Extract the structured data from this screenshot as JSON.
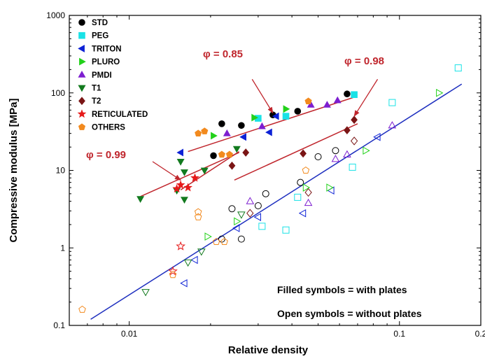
{
  "chart_data": {
    "type": "scatter",
    "title": "",
    "xlabel": "Relative density",
    "ylabel": "Compressive modulus [MPa]",
    "xscale": "log",
    "yscale": "log",
    "xlim": [
      0.006,
      0.2
    ],
    "ylim": [
      0.1,
      1000
    ],
    "x_ticks": [
      0.01,
      0.1,
      0.2
    ],
    "x_tick_labels": [
      "0.01",
      "0.1",
      "0.2"
    ],
    "y_ticks": [
      0.1,
      1,
      10,
      100,
      1000
    ],
    "y_tick_labels": [
      "0.1",
      "1",
      "10",
      "100",
      "1000"
    ],
    "legend_position": "top-left",
    "series": [
      {
        "name": "STD",
        "color": "#000000",
        "marker": "circle",
        "filled": [
          [
            0.0205,
            15.5
          ],
          [
            0.022,
            40
          ],
          [
            0.026,
            38
          ],
          [
            0.034,
            52
          ],
          [
            0.042,
            58
          ],
          [
            0.064,
            97
          ]
        ],
        "open": [
          [
            0.022,
            1.3
          ],
          [
            0.024,
            3.2
          ],
          [
            0.026,
            1.3
          ],
          [
            0.03,
            3.5
          ],
          [
            0.032,
            5
          ],
          [
            0.043,
            7
          ],
          [
            0.05,
            15
          ],
          [
            0.058,
            18
          ]
        ]
      },
      {
        "name": "PEG",
        "color": "#19e2e6",
        "marker": "square",
        "filled": [
          [
            0.03,
            47
          ],
          [
            0.038,
            50
          ],
          [
            0.068,
            95
          ]
        ],
        "open": [
          [
            0.031,
            1.9
          ],
          [
            0.038,
            1.7
          ],
          [
            0.042,
            4.5
          ],
          [
            0.067,
            11
          ],
          [
            0.094,
            75
          ],
          [
            0.165,
            210
          ]
        ]
      },
      {
        "name": "TRITON",
        "color": "#0d22d6",
        "marker": "triangle-left",
        "filled": [
          [
            0.0155,
            17
          ],
          [
            0.0265,
            27
          ],
          [
            0.033,
            31
          ],
          [
            0.035,
            50
          ]
        ],
        "open": [
          [
            0.016,
            0.35
          ],
          [
            0.0175,
            0.7
          ],
          [
            0.025,
            1.8
          ],
          [
            0.03,
            2.5
          ],
          [
            0.044,
            2.8
          ],
          [
            0.056,
            5.5
          ],
          [
            0.083,
            27
          ]
        ]
      },
      {
        "name": "PLURO",
        "color": "#22d11a",
        "marker": "triangle-right",
        "filled": [
          [
            0.0205,
            28
          ],
          [
            0.029,
            48
          ],
          [
            0.038,
            62
          ]
        ],
        "open": [
          [
            0.0195,
            1.4
          ],
          [
            0.025,
            2.2
          ],
          [
            0.045,
            6
          ],
          [
            0.055,
            6
          ],
          [
            0.075,
            18
          ],
          [
            0.14,
            100
          ]
        ]
      },
      {
        "name": "PMDI",
        "color": "#7d1ed0",
        "marker": "triangle-up",
        "filled": [
          [
            0.023,
            30
          ],
          [
            0.031,
            37
          ],
          [
            0.047,
            70
          ],
          [
            0.054,
            70
          ],
          [
            0.059,
            80
          ]
        ],
        "open": [
          [
            0.028,
            4
          ],
          [
            0.046,
            3.8
          ],
          [
            0.058,
            14
          ],
          [
            0.064,
            16
          ],
          [
            0.094,
            38
          ]
        ]
      },
      {
        "name": "T1",
        "color": "#127a1e",
        "marker": "triangle-down",
        "filled": [
          [
            0.011,
            4.3
          ],
          [
            0.015,
            5.5
          ],
          [
            0.0155,
            13
          ],
          [
            0.016,
            9.5
          ],
          [
            0.016,
            4.2
          ],
          [
            0.019,
            10
          ],
          [
            0.025,
            19
          ]
        ],
        "open": [
          [
            0.0115,
            0.27
          ],
          [
            0.0165,
            0.65
          ],
          [
            0.0185,
            0.9
          ],
          [
            0.026,
            2.7
          ]
        ]
      },
      {
        "name": "T2",
        "color": "#7a1515",
        "marker": "diamond",
        "filled": [
          [
            0.024,
            11.5
          ],
          [
            0.027,
            17
          ],
          [
            0.044,
            16.5
          ],
          [
            0.064,
            33
          ],
          [
            0.068,
            45
          ]
        ],
        "open": [
          [
            0.028,
            2.8
          ],
          [
            0.046,
            5.2
          ],
          [
            0.068,
            24
          ]
        ]
      },
      {
        "name": "RETICULATED",
        "color": "#e61a1a",
        "marker": "star",
        "filled": [
          [
            0.015,
            5.8
          ],
          [
            0.0155,
            6.5
          ],
          [
            0.0165,
            6
          ],
          [
            0.0175,
            8
          ]
        ],
        "open": [
          [
            0.0145,
            0.5
          ],
          [
            0.0155,
            1.05
          ]
        ]
      },
      {
        "name": "OTHERS",
        "color": "#f28a1e",
        "marker": "pentagon",
        "filled": [
          [
            0.018,
            30
          ],
          [
            0.019,
            32
          ],
          [
            0.022,
            16
          ],
          [
            0.0235,
            16
          ],
          [
            0.046,
            78
          ]
        ],
        "open": [
          [
            0.0067,
            0.16
          ],
          [
            0.0145,
            0.45
          ],
          [
            0.018,
            2.5
          ],
          [
            0.018,
            2.9
          ],
          [
            0.021,
            1.2
          ],
          [
            0.0225,
            1.2
          ],
          [
            0.045,
            10
          ]
        ]
      }
    ],
    "fit_lines": [
      {
        "color": "#c0262d",
        "from": [
          0.011,
          4.6
        ],
        "to": [
          0.0255,
          17
        ]
      },
      {
        "color": "#c0262d",
        "from": [
          0.0155,
          5.6
        ],
        "to": [
          0.0255,
          17.5
        ]
      },
      {
        "color": "#c0262d",
        "from": [
          0.0165,
          17.5
        ],
        "to": [
          0.068,
          88
        ]
      },
      {
        "color": "#c0262d",
        "from": [
          0.0245,
          7.5
        ],
        "to": [
          0.07,
          40
        ]
      },
      {
        "color": "#1e2fbf",
        "from": [
          0.0072,
          0.12
        ],
        "to": [
          0.17,
          130
        ]
      }
    ],
    "annotations": [
      {
        "text": "φ = 0.99",
        "arrow_from": [
          0.0122,
          13
        ],
        "arrow_to": [
          0.0155,
          7.5
        ]
      },
      {
        "text": "φ = 0.85",
        "arrow_from": [
          0.0285,
          150
        ],
        "arrow_to": [
          0.034,
          55
        ]
      },
      {
        "text": "φ = 0.98",
        "arrow_from": [
          0.083,
          150
        ],
        "arrow_to": [
          0.068,
          50
        ]
      }
    ],
    "notes": [
      "Filled symbols = with plates",
      "Open symbols = without plates"
    ]
  }
}
